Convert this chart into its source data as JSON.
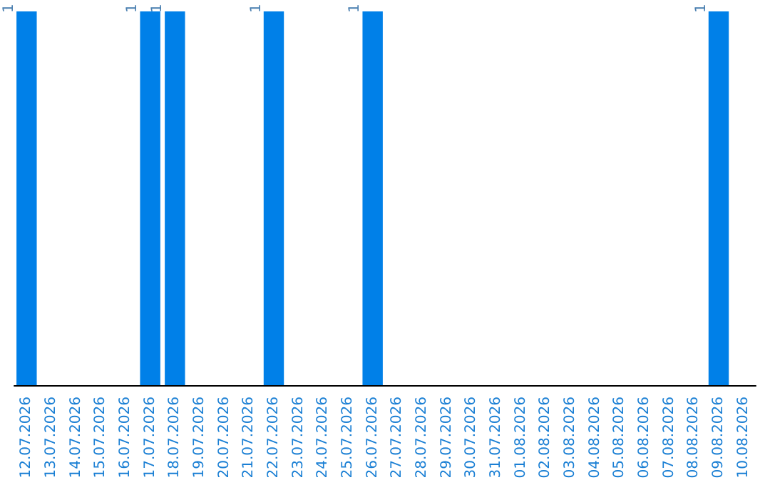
{
  "chart_data": {
    "type": "bar",
    "categories": [
      "12.07.2026",
      "13.07.2026",
      "14.07.2026",
      "15.07.2026",
      "16.07.2026",
      "17.07.2026",
      "18.07.2026",
      "19.07.2026",
      "20.07.2026",
      "21.07.2026",
      "22.07.2026",
      "23.07.2026",
      "24.07.2026",
      "25.07.2026",
      "26.07.2026",
      "27.07.2026",
      "28.07.2026",
      "29.07.2026",
      "30.07.2026",
      "31.07.2026",
      "01.08.2026",
      "02.08.2026",
      "03.08.2026",
      "04.08.2026",
      "05.08.2026",
      "06.08.2026",
      "07.08.2026",
      "08.08.2026",
      "09.08.2026",
      "10.08.2026"
    ],
    "values": [
      1,
      0,
      0,
      0,
      0,
      1,
      1,
      0,
      0,
      0,
      1,
      0,
      0,
      0,
      1,
      0,
      0,
      0,
      0,
      0,
      0,
      0,
      0,
      0,
      0,
      0,
      0,
      0,
      1,
      0
    ],
    "value_labels": [
      "1",
      null,
      null,
      null,
      null,
      "1",
      "1",
      null,
      null,
      null,
      "1",
      null,
      null,
      null,
      "1",
      null,
      null,
      null,
      null,
      null,
      null,
      null,
      null,
      null,
      null,
      null,
      null,
      null,
      "1",
      null
    ],
    "color": "#0080e8",
    "tick_labels": "x",
    "grid": false
  }
}
